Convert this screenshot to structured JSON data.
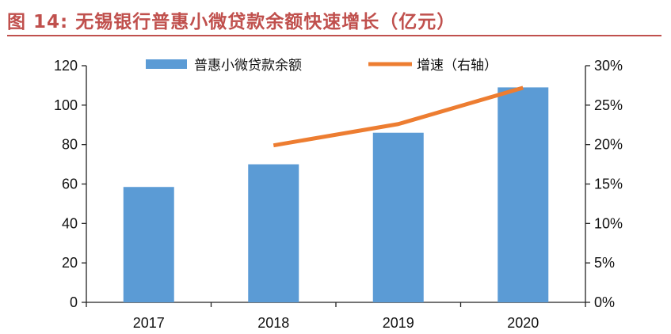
{
  "figure": {
    "title": "图 14: 无锡银行普惠小微贷款余额快速增长（亿元）"
  },
  "chart_data": {
    "type": "bar",
    "categories": [
      "2017",
      "2018",
      "2019",
      "2020"
    ],
    "series": [
      {
        "name": "普惠小微贷款余额",
        "kind": "bar",
        "axis": "left",
        "color": "#5b9bd5",
        "values": [
          58.5,
          70,
          86,
          109
        ]
      },
      {
        "name": "增速（右轴）",
        "kind": "line",
        "axis": "right",
        "color": "#ed7d31",
        "values": [
          null,
          19.9,
          22.6,
          27.2
        ]
      }
    ],
    "ylim_left": [
      0,
      120
    ],
    "yticks_left": [
      "0",
      "20",
      "40",
      "60",
      "80",
      "100",
      "120"
    ],
    "ylim_right": [
      0,
      30
    ],
    "yticks_right": [
      "0%",
      "5%",
      "10%",
      "15%",
      "20%",
      "25%",
      "30%"
    ],
    "grid": false,
    "legend_position": "top"
  }
}
